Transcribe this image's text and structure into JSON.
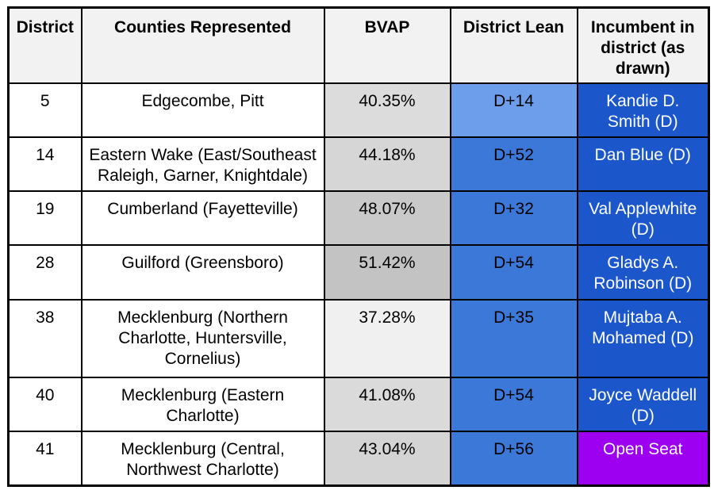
{
  "colors": {
    "page_bg": "#ffffff",
    "border": "#000000",
    "header_bg": "#f2f2f2",
    "lean_light_blue": "#6d9eeb",
    "lean_blue": "#3c78d8",
    "incumbent_blue": "#1b57cb",
    "open_seat_purple": "#9d00f0",
    "incumbent_text": "#ffffff"
  },
  "table": {
    "columns": [
      {
        "label": "District"
      },
      {
        "label": "Counties Represented"
      },
      {
        "label": "BVAP"
      },
      {
        "label": "District Lean"
      },
      {
        "label": "Incumbent in district (as drawn)"
      }
    ],
    "rows": [
      {
        "district": "5",
        "counties": "Edgecombe, Pitt",
        "bvap": "40.35%",
        "bvap_bg": "#dcdcdc",
        "lean": "D+14",
        "lean_bg": "#6d9eeb",
        "incumbent": "Kandie D. Smith (D)",
        "incumbent_bg": "#1b57cb",
        "incumbent_text": "#ffffff"
      },
      {
        "district": "14",
        "counties": "Eastern Wake (East/Southeast Raleigh, Garner, Knightdale)",
        "bvap": "44.18%",
        "bvap_bg": "#d6d6d6",
        "lean": "D+52",
        "lean_bg": "#3c78d8",
        "incumbent": "Dan Blue (D)",
        "incumbent_bg": "#1b57cb",
        "incumbent_text": "#ffffff"
      },
      {
        "district": "19",
        "counties": "Cumberland (Fayetteville)",
        "bvap": "48.07%",
        "bvap_bg": "#c9c9c9",
        "lean": "D+32",
        "lean_bg": "#3c78d8",
        "incumbent": "Val Applewhite (D)",
        "incumbent_bg": "#1b57cb",
        "incumbent_text": "#ffffff"
      },
      {
        "district": "28",
        "counties": "Guilford (Greensboro)",
        "bvap": "51.42%",
        "bvap_bg": "#c3c3c3",
        "lean": "D+54",
        "lean_bg": "#3c78d8",
        "incumbent": "Gladys A. Robinson (D)",
        "incumbent_bg": "#1b57cb",
        "incumbent_text": "#ffffff"
      },
      {
        "district": "38",
        "counties": "Mecklenburg (Northern Charlotte, Huntersville, Cornelius)",
        "bvap": "37.28%",
        "bvap_bg": "#f0f0f0",
        "lean": "D+35",
        "lean_bg": "#3c78d8",
        "incumbent": "Mujtaba A. Mohamed (D)",
        "incumbent_bg": "#1b57cb",
        "incumbent_text": "#ffffff"
      },
      {
        "district": "40",
        "counties": "Mecklenburg (Eastern Charlotte)",
        "bvap": "41.08%",
        "bvap_bg": "#dadada",
        "lean": "D+54",
        "lean_bg": "#3c78d8",
        "incumbent": "Joyce Waddell (D)",
        "incumbent_bg": "#1b57cb",
        "incumbent_text": "#ffffff"
      },
      {
        "district": "41",
        "counties": "Mecklenburg (Central, Northwest Charlotte)",
        "bvap": "43.04%",
        "bvap_bg": "#d4d4d4",
        "lean": "D+56",
        "lean_bg": "#3c78d8",
        "incumbent": "Open Seat",
        "incumbent_bg": "#9d00f0",
        "incumbent_text": "#ffffff"
      }
    ]
  },
  "chart_data": {
    "type": "table",
    "title": "",
    "columns": [
      "District",
      "Counties Represented",
      "BVAP",
      "District Lean",
      "Incumbent in district (as drawn)"
    ],
    "rows": [
      [
        "5",
        "Edgecombe, Pitt",
        "40.35%",
        "D+14",
        "Kandie D. Smith (D)"
      ],
      [
        "14",
        "Eastern Wake (East/Southeast Raleigh, Garner, Knightdale)",
        "44.18%",
        "D+52",
        "Dan Blue (D)"
      ],
      [
        "19",
        "Cumberland (Fayetteville)",
        "48.07%",
        "D+32",
        "Val Applewhite (D)"
      ],
      [
        "28",
        "Guilford (Greensboro)",
        "51.42%",
        "D+54",
        "Gladys A. Robinson (D)"
      ],
      [
        "38",
        "Mecklenburg (Northern Charlotte, Huntersville, Cornelius)",
        "37.28%",
        "D+35",
        "Mujtaba A. Mohamed (D)"
      ],
      [
        "40",
        "Mecklenburg (Eastern Charlotte)",
        "41.08%",
        "D+54",
        "Joyce Waddell (D)"
      ],
      [
        "41",
        "Mecklenburg (Central, Northwest Charlotte)",
        "43.04%",
        "D+56",
        "Open Seat"
      ]
    ],
    "notes": {
      "bvap_cell_shading": "gray gradient, darker = higher BVAP",
      "district_lean_shading": "blue, D+14 lighter (#6d9eeb), others #3c78d8",
      "incumbent_shading": "dark blue #1b57cb with white text; Open Seat cell purple #9d00f0"
    }
  }
}
